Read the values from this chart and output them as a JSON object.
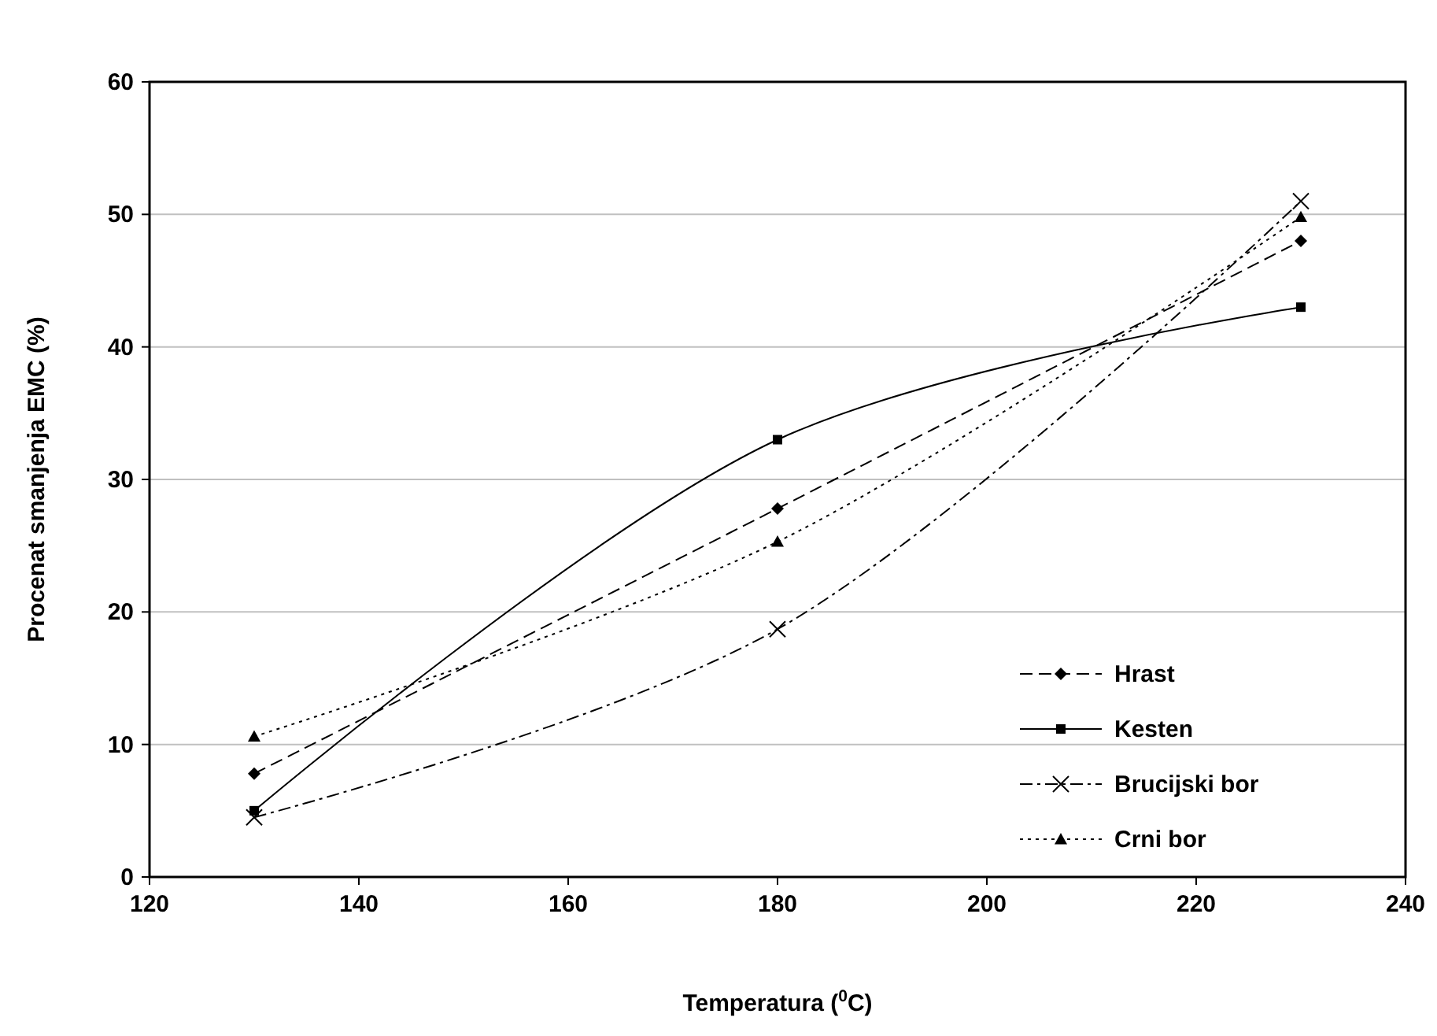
{
  "chart_data": {
    "type": "line",
    "xlabel": "Temperatura ($^{0}$C)",
    "ylabel": "Procenat smanjenja EMC (%)",
    "x": [
      130,
      180,
      230
    ],
    "xlim": [
      120,
      240
    ],
    "xticks": [
      120,
      140,
      160,
      180,
      200,
      220,
      240
    ],
    "ylim": [
      0,
      60
    ],
    "yticks": [
      0,
      10,
      20,
      30,
      40,
      50,
      60
    ],
    "grid": "y",
    "legend": "bottom right",
    "series": [
      {
        "name": "Hrast",
        "color": "#000000",
        "values": [
          7.8,
          27.8,
          48
        ],
        "marker": "diamond",
        "line_style": "dashed"
      },
      {
        "name": "Kesten",
        "color": "#000000",
        "values": [
          5,
          33,
          43
        ],
        "marker": "square",
        "line_style": "solid"
      },
      {
        "name": "Brucijski bor",
        "color": "#000000",
        "values": [
          4.5,
          18.7,
          51
        ],
        "marker": "cross",
        "line_style": "dashdot"
      },
      {
        "name": "Crni bor",
        "color": "#000000",
        "values": [
          10.6,
          25.3,
          49.8
        ],
        "marker": "triangle",
        "line_style": "dotted"
      }
    ]
  }
}
